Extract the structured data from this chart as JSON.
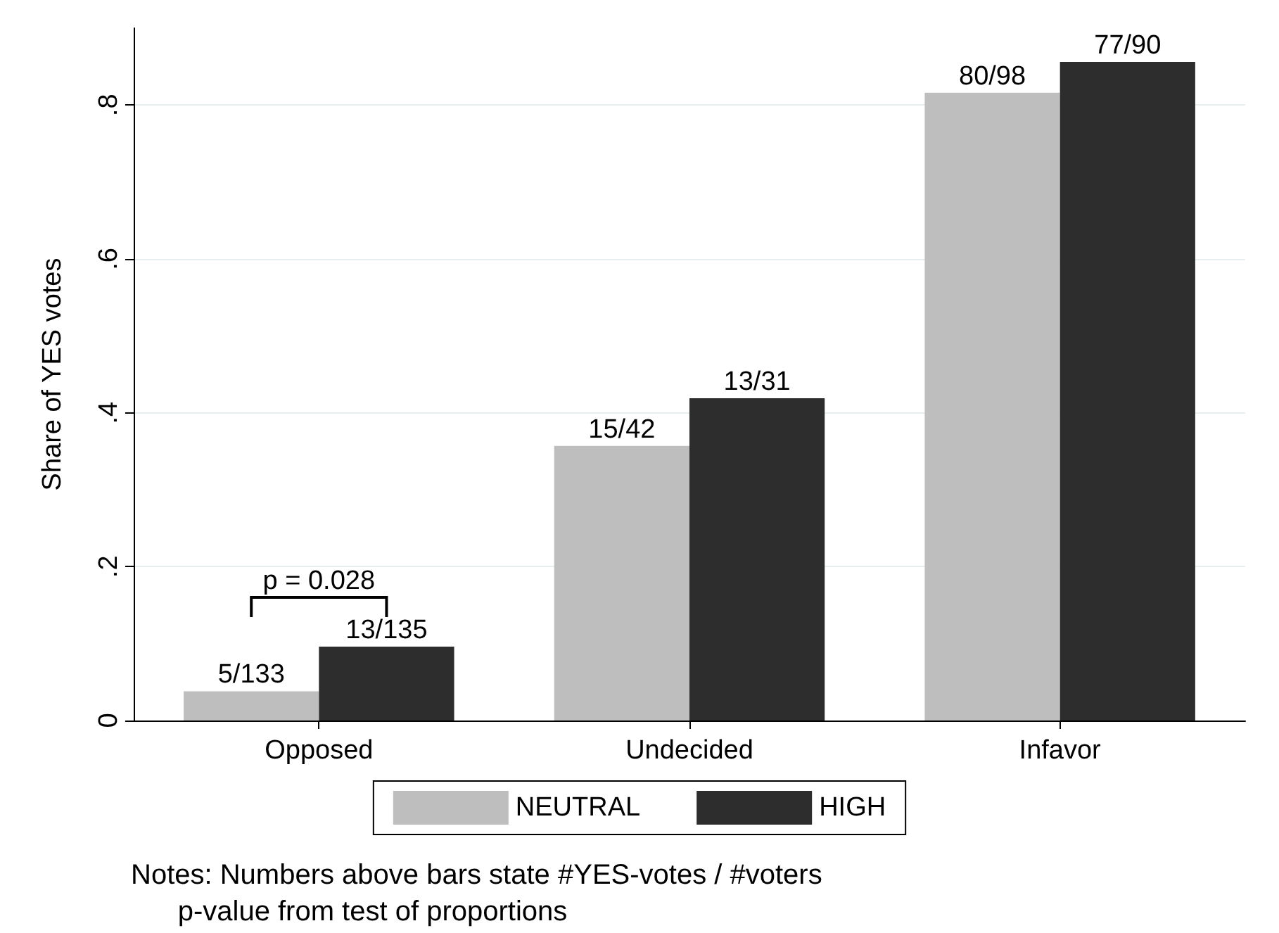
{
  "chart_data": {
    "type": "bar",
    "ylabel": "Share of YES votes",
    "categories": [
      "Opposed",
      "Undecided",
      "Infavor"
    ],
    "series": [
      {
        "name": "NEUTRAL",
        "color": "#bebebe",
        "values": [
          0.038,
          0.357,
          0.816
        ],
        "value_labels": [
          "5/133",
          "15/42",
          "80/98"
        ]
      },
      {
        "name": "HIGH",
        "color": "#2d2d2d",
        "values": [
          0.096,
          0.419,
          0.856
        ],
        "value_labels": [
          "13/135",
          "13/31",
          "77/90"
        ]
      }
    ],
    "ylim": [
      0,
      0.9
    ],
    "yticks": [
      {
        "value": 0,
        "label": "0"
      },
      {
        "value": 0.2,
        "label": ".2"
      },
      {
        "value": 0.4,
        "label": ".4"
      },
      {
        "value": 0.6,
        "label": ".6"
      },
      {
        "value": 0.8,
        "label": ".8"
      }
    ],
    "grid": "y",
    "legend": "bottom",
    "annotations": [
      "p = 0.028",
      "Notes: Numbers above bars state #YES-votes / #voters\n      p-value from test of proportions"
    ]
  }
}
